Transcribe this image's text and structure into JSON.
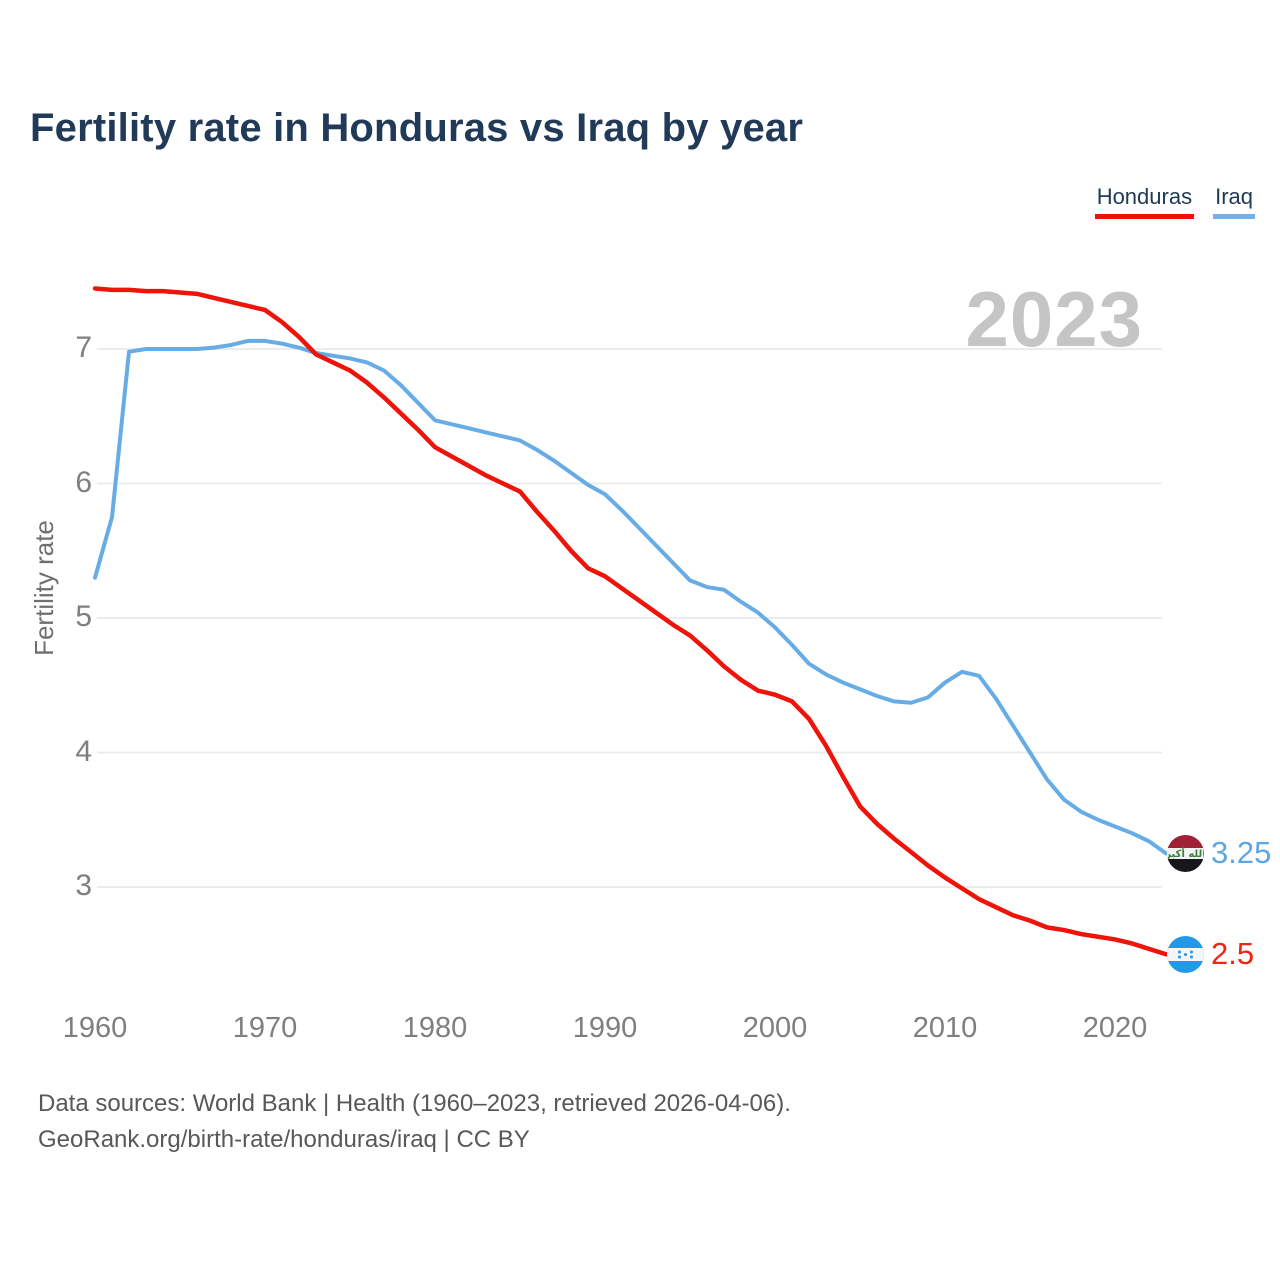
{
  "title": "Fertility rate in Honduras vs Iraq by year",
  "watermark_year": "2023",
  "legend": [
    {
      "label": "Honduras",
      "color": "#f21000"
    },
    {
      "label": "Iraq",
      "color": "#72b1e9"
    }
  ],
  "end_labels": [
    {
      "series": "Iraq",
      "value": "3.25",
      "icon": "iraq-flag-icon",
      "text_color": "#5da6e6"
    },
    {
      "series": "Honduras",
      "value": "2.5",
      "icon": "honduras-flag-icon",
      "text_color": "#f22411"
    }
  ],
  "footer": {
    "line1": "Data sources: World Bank | Health (1960–2023, retrieved 2026-04-06).",
    "line2": "GeoRank.org/birth-rate/honduras/iraq | CC BY"
  },
  "chart_data": {
    "type": "line",
    "title": "Fertility rate in Honduras vs Iraq by year",
    "xlabel": "",
    "ylabel": "Fertility rate",
    "x_ticks": [
      1960,
      1970,
      1980,
      1990,
      2000,
      2010,
      2020
    ],
    "y_ticks": [
      3,
      4,
      5,
      6,
      7
    ],
    "xlim": [
      1960,
      2023
    ],
    "ylim": [
      2.3,
      7.6
    ],
    "grid": "horizontal",
    "legend_position": "top-right",
    "x": [
      1960,
      1961,
      1962,
      1963,
      1964,
      1965,
      1966,
      1967,
      1968,
      1969,
      1970,
      1971,
      1972,
      1973,
      1974,
      1975,
      1976,
      1977,
      1978,
      1979,
      1980,
      1981,
      1982,
      1983,
      1984,
      1985,
      1986,
      1987,
      1988,
      1989,
      1990,
      1991,
      1992,
      1993,
      1994,
      1995,
      1996,
      1997,
      1998,
      1999,
      2000,
      2001,
      2002,
      2003,
      2004,
      2005,
      2006,
      2007,
      2008,
      2009,
      2010,
      2011,
      2012,
      2013,
      2014,
      2015,
      2016,
      2017,
      2018,
      2019,
      2020,
      2021,
      2022,
      2023
    ],
    "series": [
      {
        "name": "Honduras",
        "color": "#ef1309",
        "final_value": 2.5,
        "values": [
          7.45,
          7.44,
          7.44,
          7.43,
          7.43,
          7.42,
          7.41,
          7.38,
          7.35,
          7.32,
          7.29,
          7.2,
          7.09,
          6.96,
          6.9,
          6.84,
          6.75,
          6.64,
          6.52,
          6.4,
          6.27,
          6.2,
          6.13,
          6.06,
          6.0,
          5.94,
          5.79,
          5.65,
          5.5,
          5.37,
          5.31,
          5.22,
          5.13,
          5.04,
          4.95,
          4.87,
          4.76,
          4.64,
          4.54,
          4.46,
          4.43,
          4.38,
          4.25,
          4.05,
          3.82,
          3.6,
          3.47,
          3.36,
          3.26,
          3.16,
          3.07,
          2.99,
          2.91,
          2.85,
          2.79,
          2.75,
          2.7,
          2.68,
          2.65,
          2.63,
          2.61,
          2.58,
          2.54,
          2.5
        ]
      },
      {
        "name": "Iraq",
        "color": "#68ace6",
        "final_value": 3.25,
        "values": [
          5.3,
          5.75,
          6.98,
          7.0,
          7.0,
          7.0,
          7.0,
          7.01,
          7.03,
          7.06,
          7.06,
          7.04,
          7.01,
          6.97,
          6.95,
          6.93,
          6.9,
          6.84,
          6.73,
          6.6,
          6.47,
          6.44,
          6.41,
          6.38,
          6.35,
          6.32,
          6.25,
          6.17,
          6.08,
          5.99,
          5.92,
          5.8,
          5.67,
          5.54,
          5.41,
          5.28,
          5.23,
          5.21,
          5.12,
          5.04,
          4.93,
          4.8,
          4.66,
          4.58,
          4.52,
          4.47,
          4.42,
          4.38,
          4.37,
          4.41,
          4.52,
          4.6,
          4.57,
          4.4,
          4.2,
          4.0,
          3.8,
          3.65,
          3.56,
          3.5,
          3.45,
          3.4,
          3.34,
          3.25
        ]
      }
    ]
  }
}
